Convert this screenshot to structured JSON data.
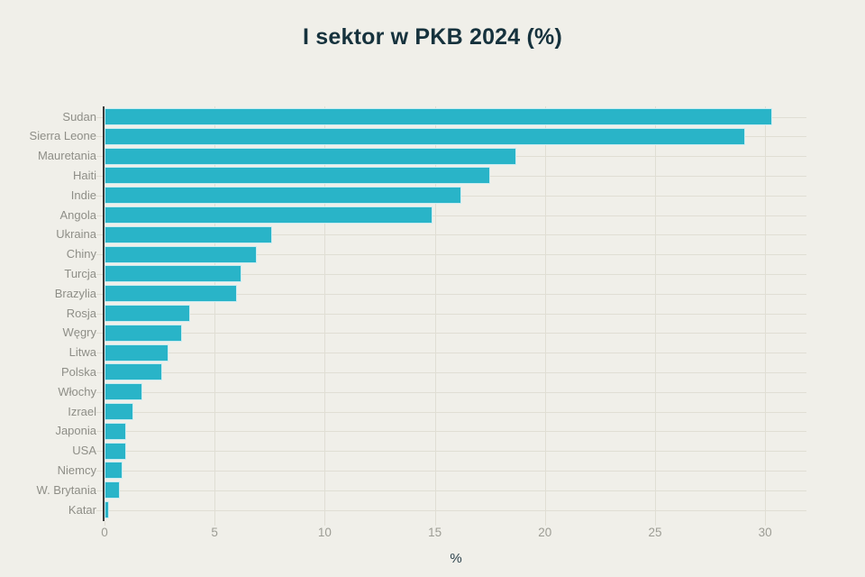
{
  "title": "I sektor w PKB 2024 (%)",
  "chart_data": {
    "type": "bar",
    "orientation": "horizontal",
    "title": "I sektor w PKB 2024 (%)",
    "categories": [
      "Sudan",
      "Sierra Leone",
      "Mauretania",
      "Haiti",
      "Indie",
      "Angola",
      "Ukraina",
      "Chiny",
      "Turcja",
      "Brazylia",
      "Rosja",
      "Węgry",
      "Litwa",
      "Polska",
      "Włochy",
      "Izrael",
      "Japonia",
      "USA",
      "Niemcy",
      "W. Brytania",
      "Katar"
    ],
    "values": [
      30.3,
      29.1,
      18.7,
      17.5,
      16.2,
      14.9,
      7.6,
      6.9,
      6.2,
      6.0,
      3.9,
      3.5,
      2.9,
      2.6,
      1.7,
      1.3,
      1.0,
      1.0,
      0.8,
      0.7,
      0.2
    ],
    "xlabel": "%",
    "ylabel": "",
    "x_ticks": [
      0,
      5,
      10,
      15,
      20,
      25,
      30
    ],
    "xlim": [
      0,
      32
    ],
    "grid": true,
    "legend": "none",
    "colors": {
      "bar": "#29b4c8",
      "background": "#f0efe9",
      "title": "#16323d",
      "category_label": "#8e8e87",
      "tick_label": "#9c9c94",
      "grid": "#e0ded4",
      "axis": "#3b3b3b",
      "xlabel": "#2c424c"
    }
  }
}
